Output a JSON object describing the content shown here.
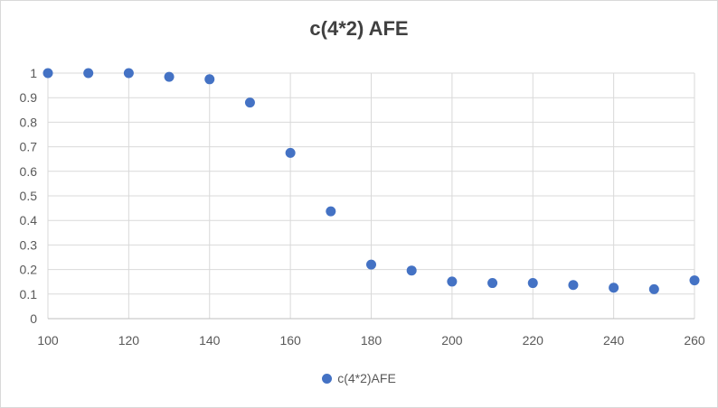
{
  "chart_data": {
    "type": "scatter",
    "title": "c(4*2) AFE",
    "xlabel": "",
    "ylabel": "",
    "xlim": [
      100,
      260
    ],
    "ylim": [
      0,
      1
    ],
    "x_ticks": [
      100,
      120,
      140,
      160,
      180,
      200,
      220,
      240,
      260
    ],
    "y_ticks": [
      0,
      0.1,
      0.2,
      0.3,
      0.4,
      0.5,
      0.6,
      0.7,
      0.8,
      0.9,
      1
    ],
    "grid": true,
    "legend_position": "bottom",
    "series": [
      {
        "name": "c(4*2)AFE",
        "color": "#4472c4",
        "x": [
          100,
          110,
          120,
          130,
          140,
          150,
          160,
          170,
          180,
          190,
          200,
          210,
          220,
          230,
          240,
          250,
          260
        ],
        "y": [
          1.0,
          1.0,
          1.0,
          0.985,
          0.975,
          0.88,
          0.675,
          0.437,
          0.22,
          0.196,
          0.151,
          0.145,
          0.145,
          0.137,
          0.126,
          0.12,
          0.156
        ]
      }
    ]
  }
}
